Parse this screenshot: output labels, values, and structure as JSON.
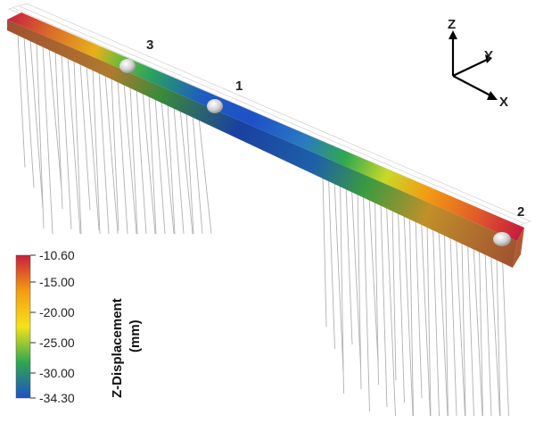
{
  "view": {
    "markers": [
      {
        "id": "1",
        "label": "1"
      },
      {
        "id": "2",
        "label": "2"
      },
      {
        "id": "3",
        "label": "3"
      }
    ],
    "axes": {
      "z": "Z",
      "y": "Y",
      "x": "X"
    }
  },
  "colorbar": {
    "title_line1": "Z-Displacement",
    "title_line2": "(mm)",
    "ticks": [
      "-10.60",
      "-15.00",
      "-20.00",
      "-25.00",
      "-30.00",
      "-34.30"
    ],
    "min": -34.3,
    "max": -10.6,
    "colors": [
      "#c81e3c",
      "#f39c12",
      "#f5e21b",
      "#2fa84f",
      "#1e50c8"
    ]
  }
}
